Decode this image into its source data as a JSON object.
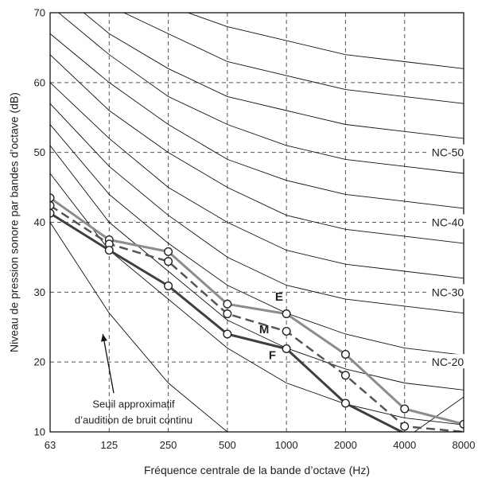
{
  "chart_data": {
    "type": "line",
    "title": "",
    "xlabel": "Fréquence centrale de la bande d’octave (Hz)",
    "ylabel": "Niveau de pression sonore par bandes d’octave (dB)",
    "x": [
      "63",
      "125",
      "250",
      "500",
      "1000",
      "2000",
      "4000",
      "8000"
    ],
    "ylim": [
      10,
      70
    ],
    "yticks": [
      10,
      20,
      30,
      40,
      50,
      60,
      70
    ],
    "grid": true,
    "colors": {
      "E": "#8c8c8c",
      "M": "#555555",
      "F": "#3f3f3f",
      "nc": "#111111",
      "grid": "#555555"
    },
    "nc_curves": [
      {
        "name": "NC-15",
        "values": [
          47,
          36,
          29,
          22,
          17,
          14,
          12,
          11
        ]
      },
      {
        "name": "NC-20",
        "values": [
          51,
          40,
          33,
          26,
          22,
          19,
          17,
          16
        ]
      },
      {
        "name": "NC-25",
        "values": [
          54,
          44,
          37,
          31,
          27,
          24,
          22,
          21
        ]
      },
      {
        "name": "NC-30",
        "values": [
          57,
          48,
          41,
          35,
          31,
          29,
          28,
          27
        ]
      },
      {
        "name": "NC-35",
        "values": [
          60,
          52,
          45,
          40,
          36,
          34,
          33,
          32
        ]
      },
      {
        "name": "NC-40",
        "values": [
          64,
          56,
          50,
          45,
          41,
          39,
          38,
          37
        ]
      },
      {
        "name": "NC-45",
        "values": [
          67,
          60,
          54,
          49,
          46,
          44,
          43,
          42
        ]
      },
      {
        "name": "NC-50",
        "values": [
          71,
          64,
          58,
          54,
          51,
          49,
          48,
          47
        ]
      },
      {
        "name": "NC-55",
        "values": [
          74,
          67,
          62,
          58,
          56,
          54,
          53,
          52
        ]
      },
      {
        "name": "NC-60",
        "values": [
          77,
          71,
          67,
          63,
          61,
          59,
          58,
          57
        ]
      },
      {
        "name": "NC-65",
        "values": [
          80,
          75,
          71,
          68,
          66,
          64,
          63,
          62
        ]
      }
    ],
    "nc_labels": [
      {
        "text": "NC-50",
        "y": 50
      },
      {
        "text": "NC-40",
        "y": 40
      },
      {
        "text": "NC-30",
        "y": 30
      },
      {
        "text": "NC-20",
        "y": 20
      }
    ],
    "threshold_curve": {
      "values": [
        40,
        27,
        17,
        10,
        7,
        7,
        9,
        15
      ]
    },
    "threshold_label": [
      "Seuil approximatif",
      "d’audition de bruit continu"
    ],
    "series": [
      {
        "name": "E",
        "values": [
          43.5,
          37.5,
          35.8,
          28.3,
          26.9,
          21.1,
          13.3,
          11.1
        ]
      },
      {
        "name": "M",
        "values": [
          42.4,
          36.9,
          34.4,
          26.9,
          24.4,
          18.1,
          10.8,
          10
        ]
      },
      {
        "name": "F",
        "values": [
          41.3,
          36.0,
          30.9,
          24.0,
          21.9,
          14.1,
          9.8,
          9.8
        ]
      }
    ]
  }
}
